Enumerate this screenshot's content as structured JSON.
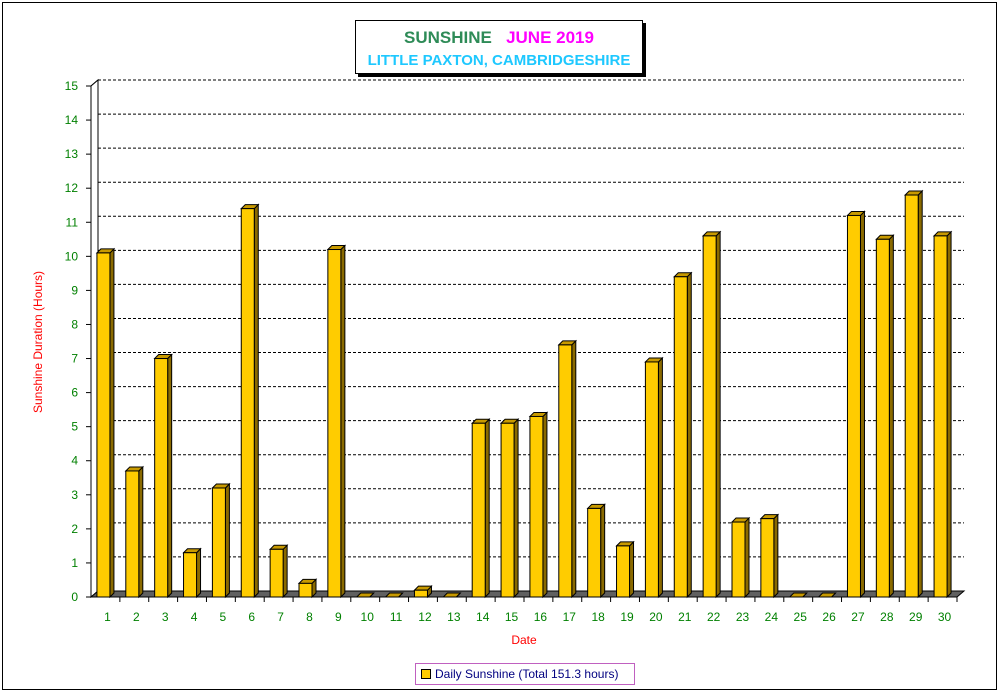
{
  "chart_data": {
    "type": "bar",
    "title_left": "SUNSHINE",
    "title_right": "JUNE 2019",
    "subtitle": "LITTLE PAXTON, CAMBRIDGESHIRE",
    "xlabel": "Date",
    "ylabel": "Sunshine Duration (Hours)",
    "ylim": [
      0,
      15
    ],
    "yticks": [
      0,
      1,
      2,
      3,
      4,
      5,
      6,
      7,
      8,
      9,
      10,
      11,
      12,
      13,
      14,
      15
    ],
    "grid": true,
    "legend_position": "bottom",
    "categories": [
      "1",
      "2",
      "3",
      "4",
      "5",
      "6",
      "7",
      "8",
      "9",
      "10",
      "11",
      "12",
      "13",
      "14",
      "15",
      "16",
      "17",
      "18",
      "19",
      "20",
      "21",
      "22",
      "23",
      "24",
      "25",
      "26",
      "27",
      "28",
      "29",
      "30"
    ],
    "series": [
      {
        "name": "Daily Sunshine (Total 151.3 hours)",
        "color": "#ffcc00",
        "values": [
          10.1,
          3.7,
          7.0,
          1.3,
          3.2,
          11.4,
          1.4,
          0.4,
          10.2,
          0.0,
          0.0,
          0.2,
          0.0,
          5.1,
          5.1,
          5.3,
          7.4,
          2.6,
          1.5,
          6.9,
          9.4,
          10.6,
          2.2,
          2.3,
          0.0,
          0.0,
          11.2,
          10.5,
          11.8,
          10.6
        ]
      }
    ]
  }
}
